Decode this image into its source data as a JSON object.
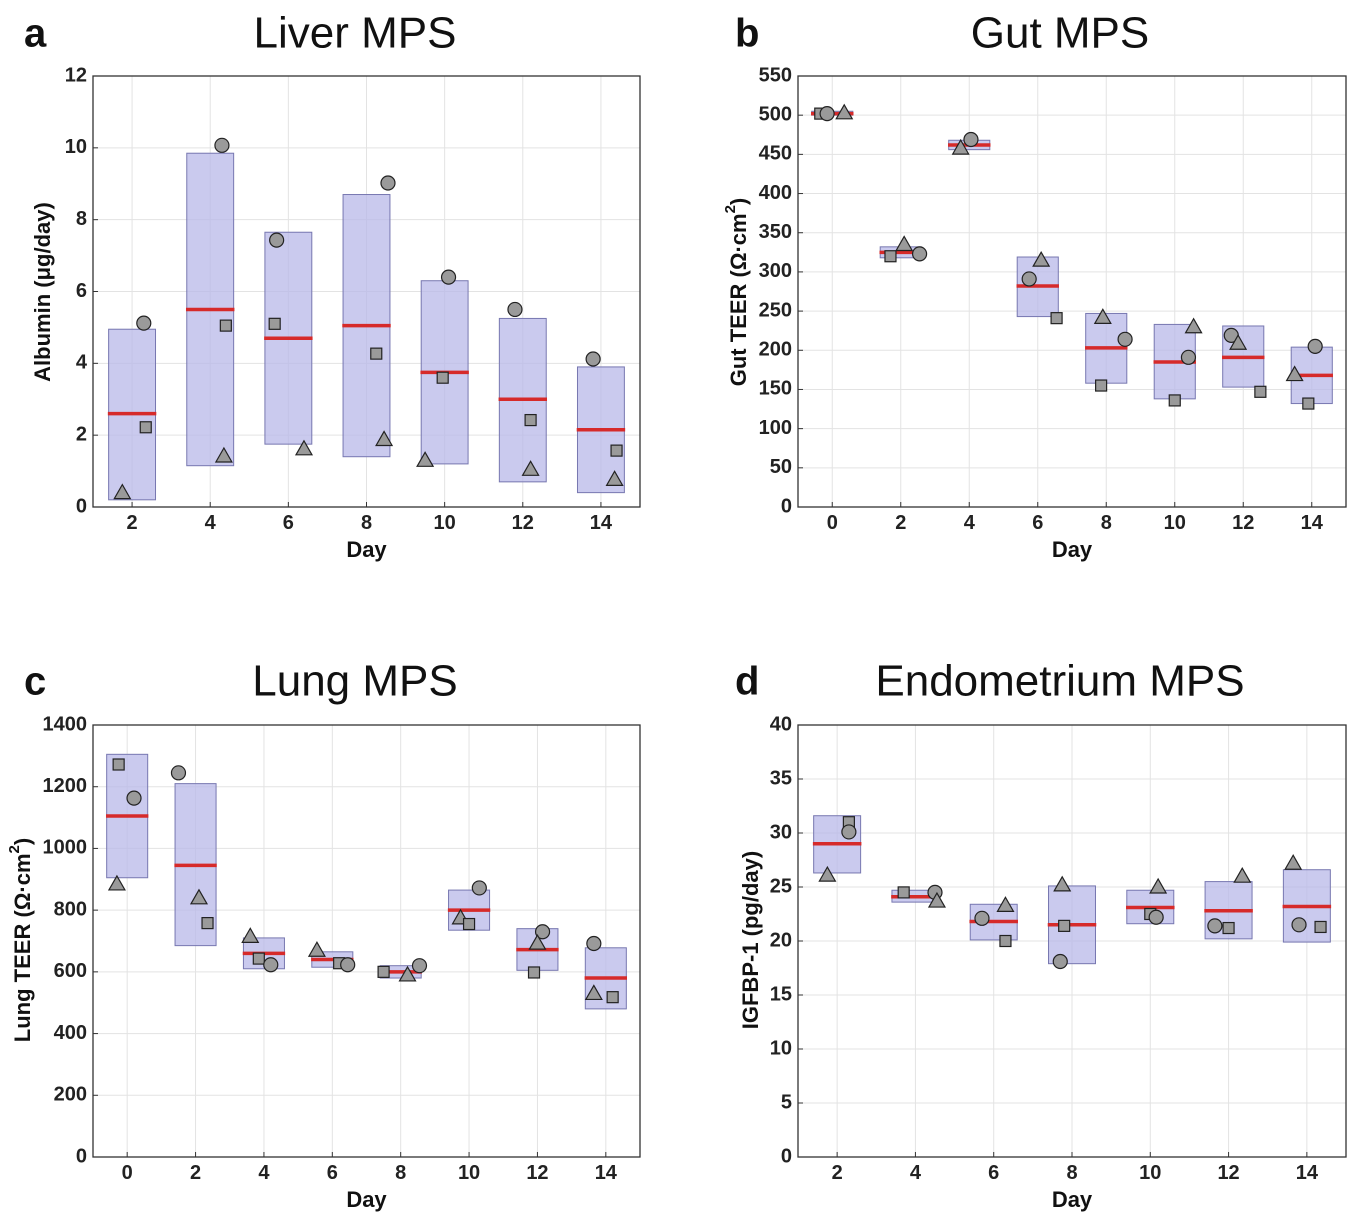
{
  "colors": {
    "box_fill": "#b8b8e8",
    "median": "#d62a2a",
    "marker": "#9a9a9a"
  },
  "chart_data": [
    {
      "type": "box",
      "panel": "a",
      "title": "Liver MPS",
      "xlabel": "Day",
      "ylabel": "Albumin (μg/day)",
      "xlim": [
        1,
        15
      ],
      "ylim": [
        0,
        12
      ],
      "xticks": [
        2,
        4,
        6,
        8,
        10,
        12,
        14
      ],
      "yticks": [
        0,
        2,
        4,
        6,
        8,
        10,
        12
      ],
      "groups": [
        {
          "x": 2,
          "low": 0.2,
          "high": 4.95,
          "median": 2.6,
          "points": [
            {
              "shape": "circle",
              "dx": 0.3,
              "y": 5.12
            },
            {
              "shape": "square",
              "dx": 0.35,
              "y": 2.22
            },
            {
              "shape": "triangle",
              "dx": -0.25,
              "y": 0.4
            }
          ]
        },
        {
          "x": 4,
          "low": 1.15,
          "high": 9.85,
          "median": 5.5,
          "points": [
            {
              "shape": "circle",
              "dx": 0.3,
              "y": 10.07
            },
            {
              "shape": "square",
              "dx": 0.4,
              "y": 5.05
            },
            {
              "shape": "triangle",
              "dx": 0.35,
              "y": 1.42
            }
          ]
        },
        {
          "x": 6,
          "low": 1.75,
          "high": 7.65,
          "median": 4.7,
          "points": [
            {
              "shape": "circle",
              "dx": -0.3,
              "y": 7.43
            },
            {
              "shape": "square",
              "dx": -0.35,
              "y": 5.1
            },
            {
              "shape": "triangle",
              "dx": 0.4,
              "y": 1.62
            }
          ]
        },
        {
          "x": 8,
          "low": 1.4,
          "high": 8.7,
          "median": 5.05,
          "points": [
            {
              "shape": "circle",
              "dx": 0.55,
              "y": 9.02
            },
            {
              "shape": "square",
              "dx": 0.25,
              "y": 4.27
            },
            {
              "shape": "triangle",
              "dx": 0.45,
              "y": 1.88
            }
          ]
        },
        {
          "x": 10,
          "low": 1.2,
          "high": 6.3,
          "median": 3.75,
          "points": [
            {
              "shape": "circle",
              "dx": 0.1,
              "y": 6.4
            },
            {
              "shape": "square",
              "dx": -0.05,
              "y": 3.6
            },
            {
              "shape": "triangle",
              "dx": -0.5,
              "y": 1.3
            }
          ]
        },
        {
          "x": 12,
          "low": 0.7,
          "high": 5.25,
          "median": 3.0,
          "points": [
            {
              "shape": "circle",
              "dx": -0.2,
              "y": 5.5
            },
            {
              "shape": "square",
              "dx": 0.2,
              "y": 2.42
            },
            {
              "shape": "triangle",
              "dx": 0.2,
              "y": 1.05
            }
          ]
        },
        {
          "x": 14,
          "low": 0.4,
          "high": 3.9,
          "median": 2.15,
          "points": [
            {
              "shape": "circle",
              "dx": -0.2,
              "y": 4.12
            },
            {
              "shape": "square",
              "dx": 0.4,
              "y": 1.57
            },
            {
              "shape": "triangle",
              "dx": 0.35,
              "y": 0.77
            }
          ]
        }
      ]
    },
    {
      "type": "box",
      "panel": "b",
      "title": "Gut MPS",
      "xlabel": "Day",
      "ylabel": "Gut TEER (Ω·cm²)",
      "xlim": [
        -1,
        15
      ],
      "ylim": [
        0,
        550
      ],
      "xticks": [
        0,
        2,
        4,
        6,
        8,
        10,
        12,
        14
      ],
      "yticks": [
        0,
        50,
        100,
        150,
        200,
        250,
        300,
        350,
        400,
        450,
        500,
        550
      ],
      "groups": [
        {
          "x": 0,
          "low": 500,
          "high": 505,
          "median": 502,
          "points": [
            {
              "shape": "square",
              "dx": -0.35,
              "y": 502
            },
            {
              "shape": "circle",
              "dx": -0.15,
              "y": 502
            },
            {
              "shape": "triangle",
              "dx": 0.35,
              "y": 503
            }
          ]
        },
        {
          "x": 2,
          "low": 318,
          "high": 332,
          "median": 325,
          "points": [
            {
              "shape": "square",
              "dx": -0.3,
              "y": 320
            },
            {
              "shape": "triangle",
              "dx": 0.1,
              "y": 335
            },
            {
              "shape": "circle",
              "dx": 0.55,
              "y": 323
            }
          ]
        },
        {
          "x": 4,
          "low": 456,
          "high": 468,
          "median": 462,
          "points": [
            {
              "shape": "triangle",
              "dx": -0.25,
              "y": 458
            },
            {
              "shape": "circle",
              "dx": 0.05,
              "y": 469
            }
          ]
        },
        {
          "x": 6,
          "low": 243,
          "high": 319,
          "median": 282,
          "points": [
            {
              "shape": "circle",
              "dx": -0.25,
              "y": 291
            },
            {
              "shape": "triangle",
              "dx": 0.1,
              "y": 315
            },
            {
              "shape": "square",
              "dx": 0.55,
              "y": 241
            }
          ]
        },
        {
          "x": 8,
          "low": 158,
          "high": 247,
          "median": 203,
          "points": [
            {
              "shape": "triangle",
              "dx": -0.1,
              "y": 242
            },
            {
              "shape": "circle",
              "dx": 0.55,
              "y": 214
            },
            {
              "shape": "square",
              "dx": -0.15,
              "y": 155
            }
          ]
        },
        {
          "x": 10,
          "low": 138,
          "high": 233,
          "median": 185,
          "points": [
            {
              "shape": "triangle",
              "dx": 0.55,
              "y": 230
            },
            {
              "shape": "circle",
              "dx": 0.4,
              "y": 191
            },
            {
              "shape": "square",
              "dx": 0.0,
              "y": 136
            }
          ]
        },
        {
          "x": 12,
          "low": 153,
          "high": 231,
          "median": 191,
          "points": [
            {
              "shape": "circle",
              "dx": -0.35,
              "y": 219
            },
            {
              "shape": "triangle",
              "dx": -0.15,
              "y": 209
            },
            {
              "shape": "square",
              "dx": 0.5,
              "y": 147
            }
          ]
        },
        {
          "x": 14,
          "low": 132,
          "high": 204,
          "median": 168,
          "points": [
            {
              "shape": "circle",
              "dx": 0.1,
              "y": 205
            },
            {
              "shape": "triangle",
              "dx": -0.5,
              "y": 169
            },
            {
              "shape": "square",
              "dx": -0.1,
              "y": 132
            }
          ]
        }
      ]
    },
    {
      "type": "box",
      "panel": "c",
      "title": "Lung MPS",
      "xlabel": "Day",
      "ylabel": "Lung TEER (Ω·cm²)",
      "xlim": [
        -1,
        15
      ],
      "ylim": [
        0,
        1400
      ],
      "xticks": [
        0,
        2,
        4,
        6,
        8,
        10,
        12,
        14
      ],
      "yticks": [
        0,
        200,
        400,
        600,
        800,
        1000,
        1200,
        1400
      ],
      "groups": [
        {
          "x": 0,
          "low": 905,
          "high": 1305,
          "median": 1105,
          "points": [
            {
              "shape": "square",
              "dx": -0.25,
              "y": 1272
            },
            {
              "shape": "circle",
              "dx": 0.2,
              "y": 1163
            },
            {
              "shape": "triangle",
              "dx": -0.3,
              "y": 885
            }
          ]
        },
        {
          "x": 2,
          "low": 685,
          "high": 1210,
          "median": 945,
          "points": [
            {
              "shape": "circle",
              "dx": -0.5,
              "y": 1245
            },
            {
              "shape": "triangle",
              "dx": 0.1,
              "y": 840
            },
            {
              "shape": "square",
              "dx": 0.35,
              "y": 758
            }
          ]
        },
        {
          "x": 4,
          "low": 610,
          "high": 710,
          "median": 660,
          "points": [
            {
              "shape": "triangle",
              "dx": -0.4,
              "y": 715
            },
            {
              "shape": "square",
              "dx": -0.15,
              "y": 643
            },
            {
              "shape": "circle",
              "dx": 0.2,
              "y": 623
            }
          ]
        },
        {
          "x": 6,
          "low": 615,
          "high": 665,
          "median": 640,
          "points": [
            {
              "shape": "triangle",
              "dx": -0.45,
              "y": 670
            },
            {
              "shape": "square",
              "dx": 0.2,
              "y": 628
            },
            {
              "shape": "circle",
              "dx": 0.45,
              "y": 623
            }
          ]
        },
        {
          "x": 8,
          "low": 580,
          "high": 620,
          "median": 600,
          "points": [
            {
              "shape": "square",
              "dx": -0.5,
              "y": 600
            },
            {
              "shape": "triangle",
              "dx": 0.2,
              "y": 590
            },
            {
              "shape": "circle",
              "dx": 0.55,
              "y": 620
            }
          ]
        },
        {
          "x": 10,
          "low": 735,
          "high": 865,
          "median": 800,
          "points": [
            {
              "shape": "circle",
              "dx": 0.3,
              "y": 872
            },
            {
              "shape": "triangle",
              "dx": -0.25,
              "y": 775
            },
            {
              "shape": "square",
              "dx": 0.0,
              "y": 755
            }
          ]
        },
        {
          "x": 12,
          "low": 605,
          "high": 740,
          "median": 672,
          "points": [
            {
              "shape": "circle",
              "dx": 0.15,
              "y": 730
            },
            {
              "shape": "triangle",
              "dx": 0.0,
              "y": 693
            },
            {
              "shape": "square",
              "dx": -0.1,
              "y": 598
            }
          ]
        },
        {
          "x": 14,
          "low": 480,
          "high": 678,
          "median": 580,
          "points": [
            {
              "shape": "circle",
              "dx": -0.35,
              "y": 692
            },
            {
              "shape": "triangle",
              "dx": -0.35,
              "y": 530
            },
            {
              "shape": "square",
              "dx": 0.2,
              "y": 518
            }
          ]
        }
      ]
    },
    {
      "type": "box",
      "panel": "d",
      "title": "Endometrium MPS",
      "xlabel": "Day",
      "ylabel": "IGFBP-1 (pg/day)",
      "xlim": [
        1,
        15
      ],
      "ylim": [
        0,
        40
      ],
      "xticks": [
        2,
        4,
        6,
        8,
        10,
        12,
        14
      ],
      "yticks": [
        0,
        5,
        10,
        15,
        20,
        25,
        30,
        35,
        40
      ],
      "groups": [
        {
          "x": 2,
          "low": 26.3,
          "high": 31.6,
          "median": 29.0,
          "points": [
            {
              "shape": "square",
              "dx": 0.3,
              "y": 31.0
            },
            {
              "shape": "circle",
              "dx": 0.3,
              "y": 30.1
            },
            {
              "shape": "triangle",
              "dx": -0.25,
              "y": 26.1
            }
          ]
        },
        {
          "x": 4,
          "low": 23.6,
          "high": 24.7,
          "median": 24.1,
          "points": [
            {
              "shape": "square",
              "dx": -0.3,
              "y": 24.5
            },
            {
              "shape": "circle",
              "dx": 0.5,
              "y": 24.5
            },
            {
              "shape": "triangle",
              "dx": 0.55,
              "y": 23.7
            }
          ]
        },
        {
          "x": 6,
          "low": 20.1,
          "high": 23.4,
          "median": 21.8,
          "points": [
            {
              "shape": "circle",
              "dx": -0.3,
              "y": 22.1
            },
            {
              "shape": "triangle",
              "dx": 0.3,
              "y": 23.3
            },
            {
              "shape": "square",
              "dx": 0.3,
              "y": 20.0
            }
          ]
        },
        {
          "x": 8,
          "low": 17.9,
          "high": 25.1,
          "median": 21.5,
          "points": [
            {
              "shape": "triangle",
              "dx": -0.25,
              "y": 25.2
            },
            {
              "shape": "square",
              "dx": -0.2,
              "y": 21.4
            },
            {
              "shape": "circle",
              "dx": -0.3,
              "y": 18.1
            }
          ]
        },
        {
          "x": 10,
          "low": 21.6,
          "high": 24.7,
          "median": 23.1,
          "points": [
            {
              "shape": "square",
              "dx": 0.0,
              "y": 22.5
            },
            {
              "shape": "circle",
              "dx": 0.15,
              "y": 22.2
            },
            {
              "shape": "triangle",
              "dx": 0.2,
              "y": 25.0
            }
          ]
        },
        {
          "x": 12,
          "low": 20.2,
          "high": 25.5,
          "median": 22.8,
          "points": [
            {
              "shape": "circle",
              "dx": -0.35,
              "y": 21.4
            },
            {
              "shape": "square",
              "dx": 0.0,
              "y": 21.2
            },
            {
              "shape": "triangle",
              "dx": 0.35,
              "y": 26.0
            }
          ]
        },
        {
          "x": 14,
          "low": 19.9,
          "high": 26.6,
          "median": 23.2,
          "points": [
            {
              "shape": "triangle",
              "dx": -0.35,
              "y": 27.2
            },
            {
              "shape": "circle",
              "dx": -0.2,
              "y": 21.5
            },
            {
              "shape": "square",
              "dx": 0.35,
              "y": 21.3
            }
          ]
        }
      ]
    }
  ]
}
